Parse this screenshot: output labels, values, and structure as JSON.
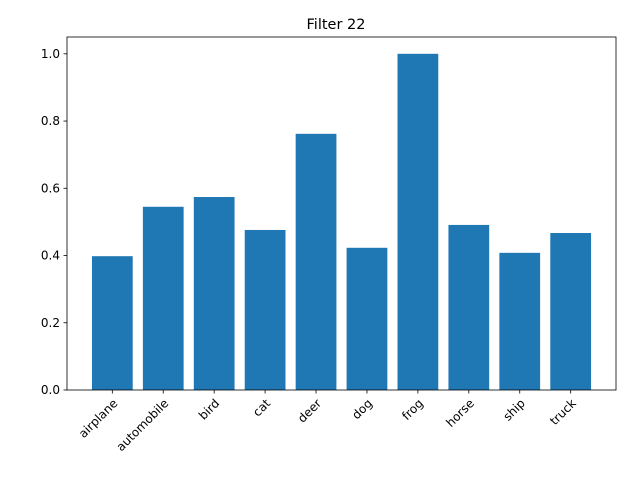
{
  "chart_data": {
    "type": "bar",
    "title": "Filter 22",
    "xlabel": "",
    "ylabel": "",
    "categories": [
      "airplane",
      "automobile",
      "bird",
      "cat",
      "deer",
      "dog",
      "frog",
      "horse",
      "ship",
      "truck"
    ],
    "values": [
      0.398,
      0.545,
      0.574,
      0.476,
      0.762,
      0.423,
      1.0,
      0.491,
      0.408,
      0.467
    ],
    "ylim": [
      0,
      1.05
    ],
    "yticks": [
      0.0,
      0.2,
      0.4,
      0.6,
      0.8,
      1.0
    ],
    "ytick_labels": [
      "0.0",
      "0.2",
      "0.4",
      "0.6",
      "0.8",
      "1.0"
    ],
    "bar_color": "#1f77b4",
    "grid": false,
    "legend": "none"
  }
}
